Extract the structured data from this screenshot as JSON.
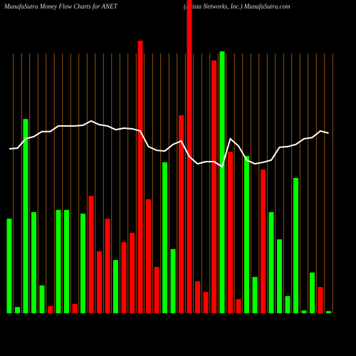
{
  "chart_data": {
    "type": "bar",
    "title": "MunafaSutra  Money Flow  Charts for ANET",
    "subtitle": "(Arista  Networks, Inc.) MunafaSutra.com",
    "categories": [
      null,
      null,
      null,
      null,
      null,
      null,
      null,
      null,
      null,
      null,
      null,
      null,
      null,
      null,
      null,
      null,
      null,
      null,
      null,
      null,
      null,
      null,
      null,
      null,
      null,
      null,
      null,
      null,
      null,
      null,
      null,
      null,
      null,
      null,
      null,
      null,
      null,
      null,
      null,
      null
    ],
    "values": [
      30.2,
      2.0,
      62.0,
      32.3,
      8.9,
      2.3,
      33.0,
      33.0,
      3.0,
      31.8,
      37.5,
      19.8,
      30.2,
      17.0,
      22.7,
      25.7,
      87.0,
      36.4,
      14.8,
      48.2,
      20.5,
      63.2,
      105,
      10.2,
      6.8,
      80.7,
      83.6,
      51.6,
      4.5,
      50.2,
      11.6,
      45.9,
      32.3,
      23.6,
      5.5,
      43.2,
      0.9,
      13.0,
      8.4,
      0.7
    ],
    "colors": [
      "#00ff00",
      "#00ff00",
      "#00ff00",
      "#00ff00",
      "#00ff00",
      "#ff0000",
      "#00ff00",
      "#00ff00",
      "#ff0000",
      "#00ff00",
      "#ff0000",
      "#ff0000",
      "#ff0000",
      "#00ff00",
      "#ff0000",
      "#ff0000",
      "#ff0000",
      "#ff0000",
      "#ff0000",
      "#00ff00",
      "#00ff00",
      "#ff0000",
      "#ff0000",
      "#ff0000",
      "#ff0000",
      "#ff0000",
      "#00ff00",
      "#ff0000",
      "#ff0000",
      "#00ff00",
      "#00ff00",
      "#ff0000",
      "#00ff00",
      "#00ff00",
      "#00ff00",
      "#00ff00",
      "#00ff00",
      "#00ff00",
      "#ff0000",
      "#00ff00"
    ],
    "line": {
      "color": "#ffffff",
      "values": [
        52.5,
        52.7,
        55.7,
        56.4,
        58.0,
        58.0,
        59.8,
        59.8,
        59.8,
        60.0,
        61.4,
        60.2,
        59.8,
        58.6,
        59.1,
        58.9,
        58.2,
        53.2,
        52.0,
        51.8,
        53.9,
        55.0,
        50.0,
        47.7,
        48.4,
        48.4,
        46.8,
        55.7,
        53.4,
        48.9,
        47.7,
        48.2,
        48.9,
        53.0,
        53.2,
        53.9,
        55.7,
        56.1,
        58.2,
        57.5
      ]
    },
    "ylim": [
      0,
      100
    ],
    "grid": true,
    "grid_color": "#b8660b"
  }
}
